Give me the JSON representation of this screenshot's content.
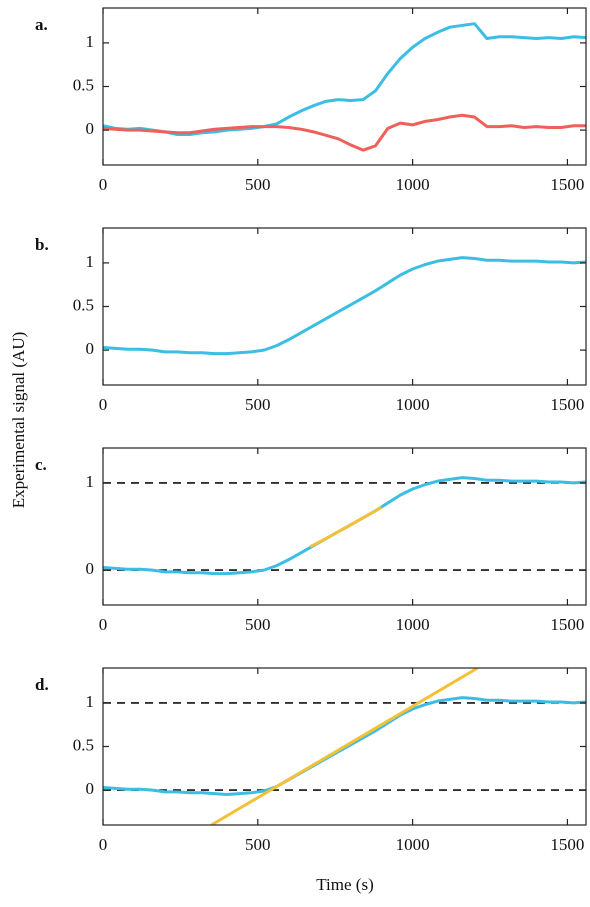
{
  "figure": {
    "ylabel": "Experimental signal (AU)",
    "xlabel": "Time (s)"
  },
  "chart_data": [
    {
      "type": "line",
      "label": "a.",
      "xlim": [
        0,
        1560
      ],
      "ylim": [
        -0.4,
        1.4
      ],
      "xticks": [
        0,
        500,
        1000,
        1500
      ],
      "yticks": [
        0,
        0.5,
        1
      ],
      "x": [
        0,
        40,
        80,
        120,
        160,
        200,
        240,
        280,
        320,
        360,
        400,
        440,
        480,
        520,
        560,
        600,
        640,
        680,
        720,
        760,
        800,
        840,
        880,
        920,
        960,
        1000,
        1040,
        1080,
        1120,
        1160,
        1200,
        1240,
        1280,
        1320,
        1360,
        1400,
        1440,
        1480,
        1520,
        1560
      ],
      "series": [
        {
          "color": "#3bbde4",
          "values": [
            0.05,
            0.02,
            0.01,
            0.02,
            0,
            -0.02,
            -0.05,
            -0.05,
            -0.03,
            -0.02,
            0,
            0.01,
            0.02,
            0.04,
            0.07,
            0.15,
            0.22,
            0.28,
            0.33,
            0.35,
            0.34,
            0.35,
            0.45,
            0.65,
            0.82,
            0.95,
            1.05,
            1.12,
            1.18,
            1.2,
            1.22,
            1.05,
            1.07,
            1.07,
            1.06,
            1.05,
            1.06,
            1.05,
            1.07,
            1.06
          ]
        },
        {
          "color": "#f0605a",
          "values": [
            0.02,
            0.01,
            0,
            0,
            -0.01,
            -0.02,
            -0.03,
            -0.03,
            -0.01,
            0.01,
            0.02,
            0.03,
            0.04,
            0.04,
            0.04,
            0.03,
            0.01,
            -0.02,
            -0.06,
            -0.1,
            -0.17,
            -0.23,
            -0.18,
            0.02,
            0.08,
            0.06,
            0.1,
            0.12,
            0.15,
            0.17,
            0.15,
            0.04,
            0.04,
            0.05,
            0.03,
            0.04,
            0.03,
            0.03,
            0.05,
            0.05
          ]
        }
      ]
    },
    {
      "type": "line",
      "label": "b.",
      "xlim": [
        0,
        1560
      ],
      "ylim": [
        -0.4,
        1.4
      ],
      "xticks": [
        0,
        500,
        1000,
        1500
      ],
      "yticks": [
        0,
        0.5,
        1
      ],
      "x": [
        0,
        40,
        80,
        120,
        160,
        200,
        240,
        280,
        320,
        360,
        400,
        440,
        480,
        520,
        560,
        600,
        640,
        680,
        720,
        760,
        800,
        840,
        880,
        920,
        960,
        1000,
        1040,
        1080,
        1120,
        1160,
        1200,
        1240,
        1280,
        1320,
        1360,
        1400,
        1440,
        1480,
        1520,
        1560
      ],
      "series": [
        {
          "color": "#3bbde4",
          "values": [
            0.03,
            0.02,
            0.01,
            0.01,
            0,
            -0.02,
            -0.02,
            -0.03,
            -0.03,
            -0.04,
            -0.04,
            -0.03,
            -0.02,
            0,
            0.05,
            0.12,
            0.2,
            0.28,
            0.36,
            0.44,
            0.52,
            0.6,
            0.68,
            0.77,
            0.86,
            0.93,
            0.98,
            1.02,
            1.04,
            1.06,
            1.05,
            1.03,
            1.03,
            1.02,
            1.02,
            1.02,
            1.01,
            1.01,
            1.0,
            1.01
          ]
        }
      ]
    },
    {
      "type": "line",
      "label": "c.",
      "xlim": [
        0,
        1560
      ],
      "ylim": [
        -0.4,
        1.4
      ],
      "xticks": [
        0,
        500,
        1000,
        1500
      ],
      "yticks": [
        0,
        1
      ],
      "hlines": [
        0,
        1
      ],
      "x": [
        0,
        40,
        80,
        120,
        160,
        200,
        240,
        280,
        320,
        360,
        400,
        440,
        480,
        520,
        560,
        600,
        640,
        680,
        720,
        760,
        800,
        840,
        880,
        920,
        960,
        1000,
        1040,
        1080,
        1120,
        1160,
        1200,
        1240,
        1280,
        1320,
        1360,
        1400,
        1440,
        1480,
        1520,
        1560
      ],
      "series": [
        {
          "color": "#3bbde4",
          "values": [
            0.03,
            0.02,
            0.01,
            0.01,
            0,
            -0.02,
            -0.02,
            -0.03,
            -0.03,
            -0.04,
            -0.04,
            -0.03,
            -0.02,
            0,
            0.05,
            0.12,
            0.2,
            0.28,
            0.36,
            0.44,
            0.52,
            0.6,
            0.68,
            0.77,
            0.86,
            0.93,
            0.98,
            1.02,
            1.04,
            1.06,
            1.05,
            1.03,
            1.03,
            1.02,
            1.02,
            1.02,
            1.01,
            1.01,
            1.0,
            1.01
          ]
        },
        {
          "color": "#f4c136",
          "x": [
            670,
            720,
            760,
            800,
            840,
            880,
            900
          ],
          "values": [
            0.27,
            0.36,
            0.44,
            0.52,
            0.6,
            0.68,
            0.72
          ]
        }
      ]
    },
    {
      "type": "line",
      "label": "d.",
      "xlim": [
        0,
        1560
      ],
      "ylim": [
        -0.4,
        1.4
      ],
      "xticks": [
        0,
        500,
        1000,
        1500
      ],
      "yticks": [
        0,
        0.5,
        1
      ],
      "hlines": [
        0,
        1
      ],
      "x": [
        0,
        40,
        80,
        120,
        160,
        200,
        240,
        280,
        320,
        360,
        400,
        440,
        480,
        520,
        560,
        600,
        640,
        680,
        720,
        760,
        800,
        840,
        880,
        920,
        960,
        1000,
        1040,
        1080,
        1120,
        1160,
        1200,
        1240,
        1280,
        1320,
        1360,
        1400,
        1440,
        1480,
        1520,
        1560
      ],
      "series": [
        {
          "color": "#3bbde4",
          "values": [
            0.03,
            0.02,
            0.01,
            0.01,
            0,
            -0.02,
            -0.02,
            -0.03,
            -0.03,
            -0.04,
            -0.05,
            -0.04,
            -0.03,
            -0.01,
            0.04,
            0.12,
            0.2,
            0.28,
            0.36,
            0.44,
            0.52,
            0.6,
            0.68,
            0.77,
            0.86,
            0.93,
            0.98,
            1.02,
            1.04,
            1.06,
            1.05,
            1.03,
            1.03,
            1.02,
            1.02,
            1.02,
            1.01,
            1.01,
            1.0,
            1.01
          ]
        },
        {
          "color": "#f4c136",
          "x": [
            350,
            1210
          ],
          "values": [
            -0.4,
            1.4
          ]
        }
      ]
    }
  ]
}
